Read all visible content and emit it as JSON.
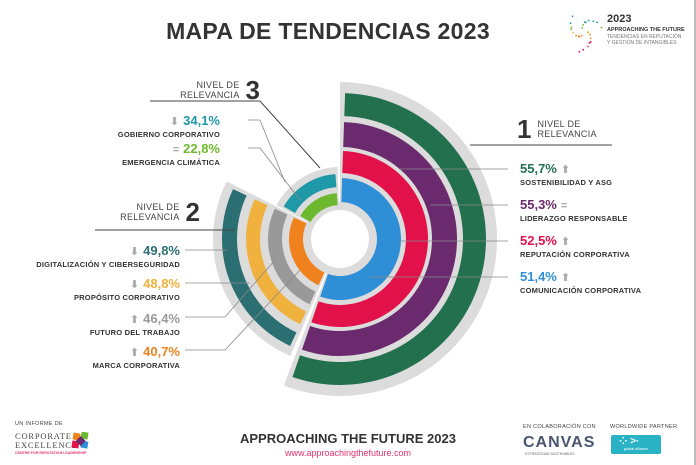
{
  "header": {
    "title": "MAPA DE TENDENCIAS 2023",
    "brand_year": "2023",
    "brand_name": "APPROACHING THE FUTURE",
    "brand_sub1": "TENDENCIAS EN REPUTACIÓN",
    "brand_sub2": "Y GESTIÓN DE INTANGIBLES"
  },
  "levels": {
    "l1": {
      "head1": "NIVEL DE",
      "head2": "RELEVANCIA",
      "num": "1"
    },
    "l2": {
      "head1": "NIVEL DE",
      "head2": "RELEVANCIA",
      "num": "2"
    },
    "l3": {
      "head1": "NIVEL DE",
      "head2": "RELEVANCIA",
      "num": "3"
    }
  },
  "chart_data": {
    "type": "radial-bar",
    "title": "MAPA DE TENDENCIAS 2023",
    "unit": "%",
    "groups": [
      {
        "name": "Nivel de relevancia 1",
        "items": [
          {
            "label": "SOSTENIBILIDAD Y ASG",
            "value": 55.7,
            "display": "55,7%",
            "trend": "up",
            "color": "#23704f"
          },
          {
            "label": "LIDERAZGO RESPONSABLE",
            "value": 55.3,
            "display": "55,3%",
            "trend": "equal",
            "color": "#6b2a6e"
          },
          {
            "label": "REPUTACIÓN CORPORATIVA",
            "value": 52.5,
            "display": "52,5%",
            "trend": "up",
            "color": "#e2114a"
          },
          {
            "label": "COMUNICACIÓN CORPORATIVA",
            "value": 51.4,
            "display": "51,4%",
            "trend": "up",
            "color": "#2e8fd6"
          }
        ]
      },
      {
        "name": "Nivel de relevancia 2",
        "items": [
          {
            "label": "DIGITALIZACIÓN Y CIBERSEGURIDAD",
            "value": 49.8,
            "display": "49,8%",
            "trend": "down",
            "color": "#2b6f73"
          },
          {
            "label": "PROPÓSITO CORPORATIVO",
            "value": 48.8,
            "display": "48,8%",
            "trend": "down",
            "color": "#f0b13e"
          },
          {
            "label": "FUTURO DEL TRABAJO",
            "value": 46.4,
            "display": "46,4%",
            "trend": "up",
            "color": "#999999"
          },
          {
            "label": "MARCA CORPORATIVA",
            "value": 40.7,
            "display": "40,7%",
            "trend": "up",
            "color": "#f0821e"
          }
        ]
      },
      {
        "name": "Nivel de relevancia 3",
        "items": [
          {
            "label": "GOBIERNO CORPORATIVO",
            "value": 34.1,
            "display": "34,1%",
            "trend": "down",
            "color": "#1f98a8"
          },
          {
            "label": "EMERGENCIA CLIMÁTICA",
            "value": 22.8,
            "display": "22,8%",
            "trend": "equal",
            "color": "#6cb92f"
          }
        ]
      }
    ]
  },
  "trend_glyphs": {
    "up": "⬆",
    "down": "⬇",
    "equal": "="
  },
  "footer": {
    "report_by": "UN INFORME DE",
    "ce_line1": "CORPORATE",
    "ce_line2": "EXCELLENCE",
    "ce_tagline": "CENTRE FOR REPUTATION LEADERSHIP",
    "main": "APPROACHING THE FUTURE 2023",
    "url": "www.approachingthefuture.com",
    "collab_label": "EN COLABORACIÓN CON",
    "collab_name": "CANVAS",
    "collab_sub": "ESTRATEGIAS SOSTENIBLES",
    "partner_label": "WORLDWIDE PARTNER",
    "partner_name": "global alliance"
  }
}
